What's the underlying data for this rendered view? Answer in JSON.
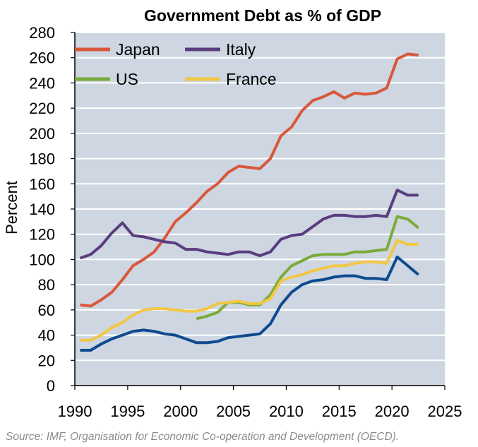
{
  "chart_data": {
    "type": "line",
    "title": "Government Debt as % of GDP",
    "xlabel": "",
    "ylabel": "Percent",
    "xlim": [
      1990,
      2025
    ],
    "ylim": [
      0,
      280
    ],
    "xticks": [
      1990,
      1995,
      2000,
      2005,
      2010,
      2015,
      2020,
      2025
    ],
    "yticks": [
      0,
      20,
      40,
      60,
      80,
      100,
      120,
      140,
      160,
      180,
      200,
      220,
      240,
      260,
      280
    ],
    "grid": true,
    "legend_position": "top-left",
    "source": "Source: IMF, Organisation for Economic Co-operation and Development (OECD).",
    "colors": {
      "plot_background": "#cdd6e1",
      "grid": "#ffffff"
    },
    "series": [
      {
        "name": "Japan",
        "color": "#d9573b",
        "x": [
          1990.5,
          1991.5,
          1992.5,
          1993.5,
          1994.5,
          1995.5,
          1996.5,
          1997.5,
          1998.5,
          1999.5,
          2000.5,
          2001.5,
          2002.5,
          2003.5,
          2004.5,
          2005.5,
          2006.5,
          2007.5,
          2008.5,
          2009.5,
          2010.5,
          2011.5,
          2012.5,
          2013.5,
          2014.5,
          2015.5,
          2016.5,
          2017.5,
          2018.5,
          2019.5,
          2020.5,
          2021.5,
          2022.5
        ],
        "values": [
          64,
          63,
          68,
          74,
          84,
          95,
          100,
          106,
          117,
          130,
          137,
          145,
          154,
          160,
          169,
          174,
          173,
          172,
          180,
          198,
          205,
          218,
          226,
          229,
          233,
          228,
          232,
          231,
          232,
          236,
          259,
          263,
          262
        ]
      },
      {
        "name": "Italy",
        "color": "#5a3d7f",
        "x": [
          1990.5,
          1991.5,
          1992.5,
          1993.5,
          1994.5,
          1995.5,
          1996.5,
          1997.5,
          1998.5,
          1999.5,
          2000.5,
          2001.5,
          2002.5,
          2003.5,
          2004.5,
          2005.5,
          2006.5,
          2007.5,
          2008.5,
          2009.5,
          2010.5,
          2011.5,
          2012.5,
          2013.5,
          2014.5,
          2015.5,
          2016.5,
          2017.5,
          2018.5,
          2019.5,
          2020.5,
          2021.5,
          2022.5
        ],
        "values": [
          101,
          104,
          111,
          121,
          129,
          119,
          118,
          116,
          114,
          113,
          108,
          108,
          106,
          105,
          104,
          106,
          106,
          103,
          106,
          116,
          119,
          120,
          126,
          132,
          135,
          135,
          134,
          134,
          135,
          134,
          155,
          151,
          151
        ]
      },
      {
        "name": "US",
        "color": "#7aab3a",
        "x": [
          2001.5,
          2002.5,
          2003.5,
          2004.5,
          2005.5,
          2006.5,
          2007.5,
          2008.5,
          2009.5,
          2010.5,
          2011.5,
          2012.5,
          2013.5,
          2014.5,
          2015.5,
          2016.5,
          2017.5,
          2018.5,
          2019.5,
          2020.5,
          2021.5,
          2022.5
        ],
        "values": [
          53,
          55,
          58,
          66,
          66,
          64,
          64,
          72,
          86,
          95,
          99,
          103,
          104,
          104,
          104,
          106,
          106,
          107,
          108,
          134,
          132,
          125
        ]
      },
      {
        "name": "France",
        "color": "#f2c744",
        "x": [
          1990.5,
          1991.5,
          1992.5,
          1993.5,
          1994.5,
          1995.5,
          1996.5,
          1997.5,
          1998.5,
          1999.5,
          2000.5,
          2001.5,
          2002.5,
          2003.5,
          2004.5,
          2005.5,
          2006.5,
          2007.5,
          2008.5,
          2009.5,
          2010.5,
          2011.5,
          2012.5,
          2013.5,
          2014.5,
          2015.5,
          2016.5,
          2017.5,
          2018.5,
          2019.5,
          2020.5,
          2021.5,
          2022.5
        ],
        "values": [
          36,
          36,
          40,
          46,
          50,
          56,
          60,
          61,
          61,
          60,
          59,
          59,
          61,
          65,
          66,
          67,
          65,
          65,
          69,
          83,
          86,
          88,
          91,
          93,
          95,
          95,
          97,
          98,
          98,
          97,
          115,
          112,
          112
        ]
      },
      {
        "name": "",
        "color": "#0e4a8f",
        "x": [
          1990.5,
          1991.5,
          1992.5,
          1993.5,
          1994.5,
          1995.5,
          1996.5,
          1997.5,
          1998.5,
          1999.5,
          2000.5,
          2001.5,
          2002.5,
          2003.5,
          2004.5,
          2005.5,
          2006.5,
          2007.5,
          2008.5,
          2009.5,
          2010.5,
          2011.5,
          2012.5,
          2013.5,
          2014.5,
          2015.5,
          2016.5,
          2017.5,
          2018.5,
          2019.5,
          2020.5,
          2021.5,
          2022.5
        ],
        "values": [
          28,
          28,
          33,
          37,
          40,
          43,
          44,
          43,
          41,
          40,
          37,
          34,
          34,
          35,
          38,
          39,
          40,
          41,
          49,
          64,
          74,
          80,
          83,
          84,
          86,
          87,
          87,
          85,
          85,
          84,
          102,
          95,
          88
        ]
      }
    ]
  }
}
